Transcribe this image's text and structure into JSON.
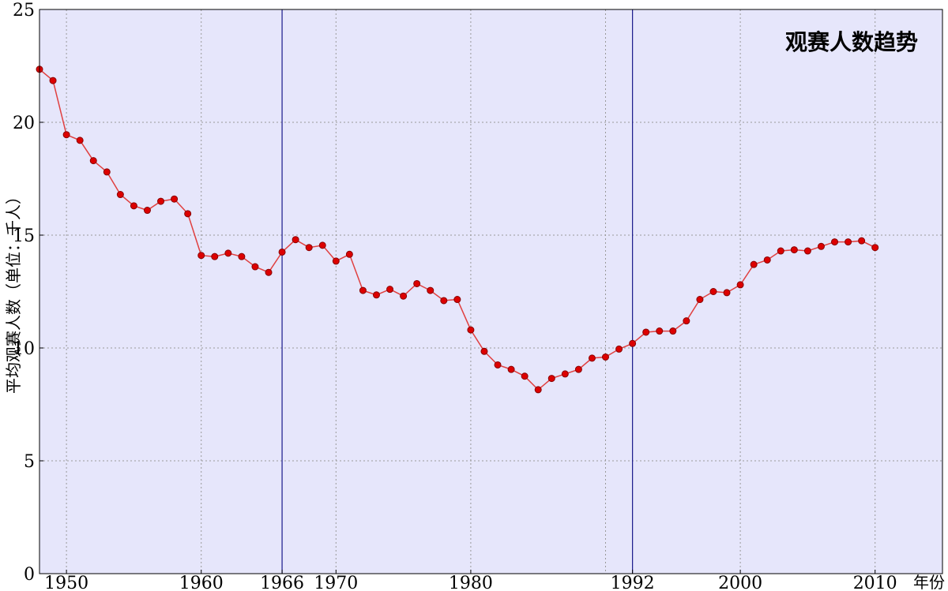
{
  "chart_data": {
    "type": "line",
    "title": "观赛人数趋势",
    "xlabel": "年份",
    "ylabel": "平均观赛人数（单位：千人）",
    "xlim": [
      1948,
      2015
    ],
    "ylim": [
      0,
      25
    ],
    "x_ticks": [
      1950,
      1960,
      1966,
      1970,
      1980,
      1992,
      2000,
      2010
    ],
    "x_gridlines": [
      1950,
      1960,
      1970,
      1980,
      1990,
      2000,
      2010
    ],
    "y_ticks": [
      0,
      5,
      10,
      15,
      20,
      25
    ],
    "grid": true,
    "vertical_markers": [
      1966,
      1992
    ],
    "colors": {
      "background": "#e6e6fb",
      "line": "#e04040",
      "marker": "#dd0000",
      "marker_edge": "#880000",
      "vertical_marker": "#1a1a8c",
      "grid": "#999999"
    },
    "series": [
      {
        "x": [
          1948,
          1949,
          1950,
          1951,
          1952,
          1953,
          1954,
          1955,
          1956,
          1957,
          1958,
          1959,
          1960,
          1961,
          1962,
          1963,
          1964,
          1965,
          1966,
          1967,
          1968,
          1969,
          1970,
          1971,
          1972,
          1973,
          1974,
          1975,
          1976,
          1977,
          1978,
          1979,
          1980,
          1981,
          1982,
          1983,
          1984,
          1985,
          1986,
          1987,
          1988,
          1989,
          1990,
          1991,
          1992,
          1993,
          1994,
          1995,
          1996,
          1997,
          1998,
          1999,
          2000,
          2001,
          2002,
          2003,
          2004,
          2005,
          2006,
          2007,
          2008,
          2009,
          2010
        ],
        "values": [
          22.35,
          21.85,
          19.45,
          19.2,
          18.3,
          17.8,
          16.8,
          16.3,
          16.1,
          16.5,
          16.6,
          15.95,
          14.1,
          14.05,
          14.2,
          14.05,
          13.6,
          13.35,
          14.25,
          14.8,
          14.45,
          14.55,
          13.85,
          14.15,
          12.55,
          12.35,
          12.6,
          12.3,
          12.85,
          12.55,
          12.1,
          12.15,
          10.8,
          9.85,
          9.25,
          9.05,
          8.75,
          8.15,
          8.65,
          8.85,
          9.05,
          9.55,
          9.6,
          9.95,
          10.2,
          10.7,
          10.75,
          10.75,
          11.2,
          12.15,
          12.5,
          12.45,
          12.8,
          13.7,
          13.9,
          14.3,
          14.35,
          14.3,
          14.5,
          14.7,
          14.7,
          14.75,
          14.45
        ]
      }
    ]
  }
}
